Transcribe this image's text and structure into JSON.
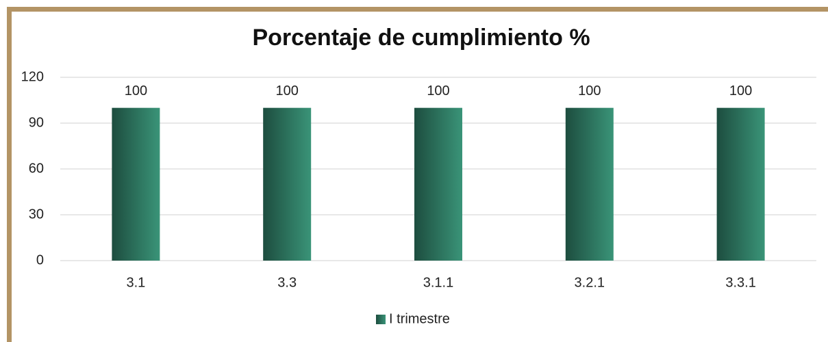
{
  "chart_data": {
    "type": "bar",
    "title": "Porcentaje de cumplimiento %",
    "categories": [
      "3.1",
      "3.3",
      "3.1.1",
      "3.2.1",
      "3.3.1"
    ],
    "series": [
      {
        "name": "I trimestre",
        "color": "#3a9478",
        "values": [
          100,
          100,
          100,
          100,
          100
        ]
      }
    ],
    "ylim": [
      0,
      120
    ],
    "yticks": [
      0,
      30,
      60,
      90,
      120
    ],
    "grid": true,
    "legend": "bottom"
  }
}
